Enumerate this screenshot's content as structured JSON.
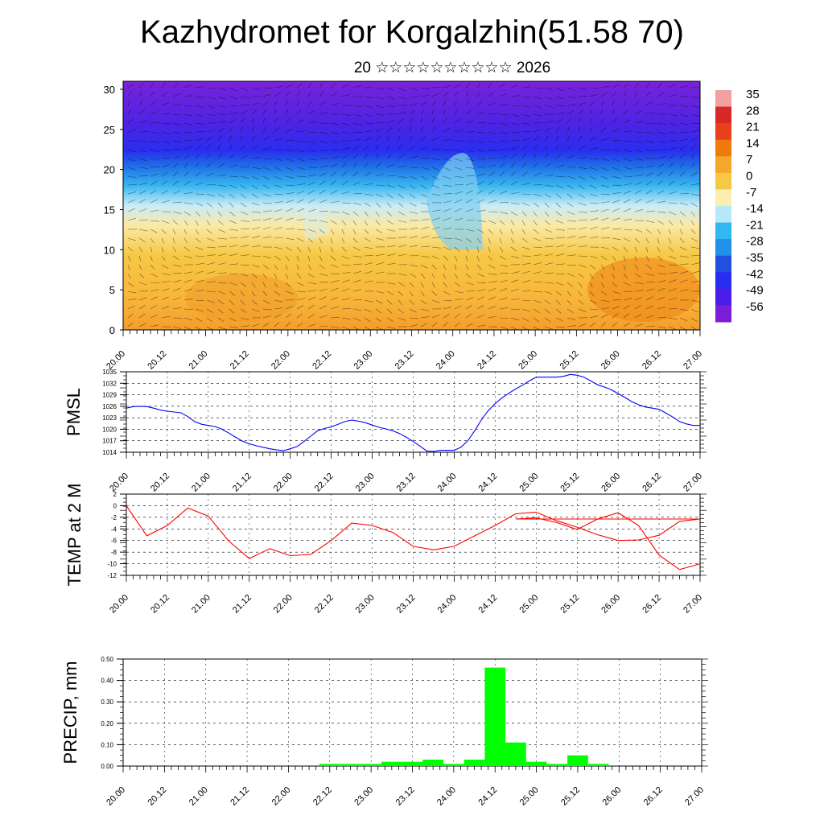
{
  "title": "Kazhydromet for Korgalzhin(51.58 70)",
  "subtitle": "20 ☆☆☆☆☆☆☆☆☆☆ 2026",
  "time_ticks": [
    "20.00",
    "20.12",
    "21.00",
    "21.12",
    "22.00",
    "22.12",
    "23.00",
    "23.12",
    "24.00",
    "24.12",
    "25.00",
    "25.12",
    "26.00",
    "26.12",
    "27.00"
  ],
  "chart_data": [
    {
      "type": "heatmap",
      "description_of_field": "vertical cross-section temperature with wind vectors",
      "y_ticks": [
        0,
        5,
        10,
        15,
        20,
        25,
        30
      ],
      "ylim": [
        0,
        31
      ],
      "colorbar": {
        "labels": [
          "35",
          "28",
          "21",
          "14",
          "7",
          "0",
          "-7",
          "-14",
          "-21",
          "-28",
          "-35",
          "-42",
          "-49",
          "-56"
        ],
        "colors": [
          "#f2a0a0",
          "#d82828",
          "#e8401c",
          "#f07a10",
          "#f4a82a",
          "#f7c845",
          "#faeeb0",
          "#b8e8f8",
          "#30b8f0",
          "#2090e8",
          "#2050e0",
          "#2a2cf0",
          "#4a1ee8",
          "#7a1ed8"
        ]
      }
    },
    {
      "type": "line",
      "ylabel": "PMSL",
      "y_ticks": [
        1014,
        1017,
        1020,
        1023,
        1026,
        1029,
        1032,
        1035
      ],
      "ylim": [
        1014,
        1035
      ],
      "xlim": [
        0,
        84
      ],
      "line_color": "#0000ff",
      "x": [
        0,
        1,
        2,
        3,
        4,
        5,
        6,
        7,
        8,
        9,
        10,
        11,
        12,
        13,
        14,
        15,
        16,
        17,
        18,
        19,
        20,
        21,
        22,
        23,
        24,
        25,
        26,
        27,
        28,
        29,
        30,
        31,
        32,
        33,
        34,
        35,
        36,
        37,
        38,
        39,
        40,
        41,
        42,
        43,
        44,
        45,
        46,
        47,
        48,
        49,
        50,
        51,
        52,
        53,
        54,
        55,
        56,
        57,
        58,
        59,
        60,
        61,
        62,
        63,
        64,
        65,
        66,
        67,
        68,
        69,
        70,
        71,
        72,
        73,
        74,
        75,
        76,
        77,
        78,
        79,
        80,
        81,
        82,
        83,
        84
      ],
      "values": [
        1025.5,
        1025.9,
        1026.0,
        1025.9,
        1025.5,
        1025.0,
        1024.7,
        1024.5,
        1024.3,
        1023.3,
        1022.0,
        1021.3,
        1021.0,
        1020.7,
        1020.0,
        1019.0,
        1017.9,
        1016.9,
        1016.2,
        1015.7,
        1015.3,
        1014.9,
        1014.6,
        1014.4,
        1014.9,
        1015.5,
        1016.8,
        1018.2,
        1019.6,
        1020.2,
        1020.6,
        1021.3,
        1022.0,
        1022.4,
        1022.1,
        1021.7,
        1021.1,
        1020.5,
        1020.1,
        1019.6,
        1018.9,
        1017.9,
        1016.8,
        1015.6,
        1014.3,
        1014.2,
        1014.5,
        1014.5,
        1014.5,
        1015.3,
        1017.0,
        1019.6,
        1022.5,
        1024.9,
        1026.7,
        1028.2,
        1029.4,
        1030.5,
        1031.5,
        1032.6,
        1033.6,
        1033.6,
        1033.6,
        1033.6,
        1033.8,
        1034.3,
        1034.1,
        1033.6,
        1032.6,
        1031.6,
        1031.0,
        1030.3,
        1029.3,
        1028.3,
        1027.2,
        1026.4,
        1025.8,
        1025.5,
        1025.2,
        1024.2,
        1023.2,
        1022.0,
        1021.4,
        1021.0,
        1021.0
      ]
    },
    {
      "type": "line",
      "ylabel": "TEMP at 2 M",
      "y_ticks": [
        -12,
        -10,
        -8,
        -6,
        -4,
        -2,
        0,
        2
      ],
      "ylim": [
        -12,
        2
      ],
      "xlim": [
        0,
        84
      ],
      "line_color": "#ff0000",
      "x": [
        0,
        3,
        6,
        9,
        12,
        15,
        18,
        21,
        24,
        27,
        30,
        33,
        36,
        39,
        42,
        45,
        48,
        51,
        54,
        57,
        60,
        63,
        66,
        69,
        72,
        75,
        78,
        81,
        84
      ],
      "values": [
        0.0,
        -5.2,
        -3.4,
        -0.4,
        -1.8,
        -6.1,
        -9.1,
        -7.4,
        -8.6,
        -8.4,
        -6.0,
        -3.0,
        -3.4,
        -4.6,
        -7.0,
        -7.6,
        -7.0,
        -5.2,
        -3.4,
        -1.4,
        -1.1,
        -2.6,
        -3.7,
        -5.0,
        -6.0,
        -5.9,
        -5.1,
        -2.7,
        -2.3
      ]
    },
    {
      "type": "bar",
      "ylabel": "PRECIP, mm",
      "y_ticks": [
        "0.00",
        "0.10",
        "0.20",
        "0.30",
        "0.40",
        "0.50"
      ],
      "ylim": [
        0,
        0.5
      ],
      "xlim": [
        0,
        84
      ],
      "bar_color": "#00ff00",
      "x": [
        30,
        33,
        36,
        39,
        42,
        45,
        48,
        51,
        54,
        57
      ],
      "values": [
        0.01,
        0.01,
        0.01,
        0.02,
        0.02,
        0.03,
        0.01,
        0.03,
        0.46,
        0.11
      ]
    }
  ],
  "temp_extra": {
    "x": [
      57,
      60,
      63,
      66,
      69,
      72,
      75,
      78,
      81,
      84
    ],
    "values": [
      -2.3,
      -2.1,
      -2.9,
      -4.1,
      -2.3,
      -1.2,
      -3.4,
      -8.5,
      -11.0,
      -10.0
    ]
  },
  "precip_extra": {
    "x": [
      60,
      63,
      66,
      69
    ],
    "values": [
      0.02,
      0.01,
      0.05,
      0.01
    ]
  }
}
